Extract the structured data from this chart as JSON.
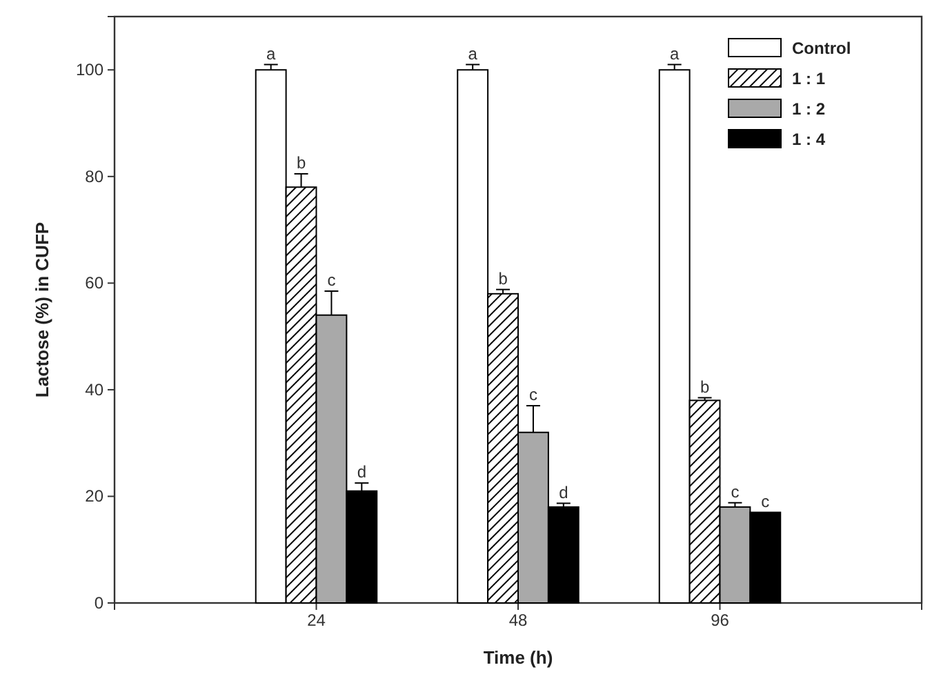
{
  "chart_data": {
    "type": "bar",
    "xlabel": "Time (h)",
    "ylabel": "Lactose (%) in CUFP",
    "categories": [
      "24",
      "48",
      "96"
    ],
    "series": [
      {
        "name": "Control",
        "color": "#ffffff",
        "values": [
          100,
          100,
          100
        ],
        "errors": [
          1,
          1,
          1
        ]
      },
      {
        "name": "1 : 1",
        "color": "#000000",
        "values": [
          78,
          58,
          38
        ],
        "errors": [
          2.5,
          0.8,
          0.5
        ]
      },
      {
        "name": "1 : 2",
        "color": "#a9a9a9",
        "values": [
          54,
          32,
          18
        ],
        "errors": [
          4.5,
          5,
          0.8
        ]
      },
      {
        "name": "1 : 4",
        "color": "#000000",
        "values": [
          21,
          18,
          17
        ],
        "errors": [
          1.5,
          0.7,
          null
        ]
      }
    ],
    "ylim": [
      0,
      110
    ],
    "yticks": [
      0,
      20,
      40,
      60,
      80,
      100
    ],
    "legend": "top right",
    "annotations": [
      "a",
      "b",
      "c",
      "d",
      "a",
      "b",
      "c",
      "d",
      "a",
      "b",
      "c",
      "c"
    ]
  }
}
